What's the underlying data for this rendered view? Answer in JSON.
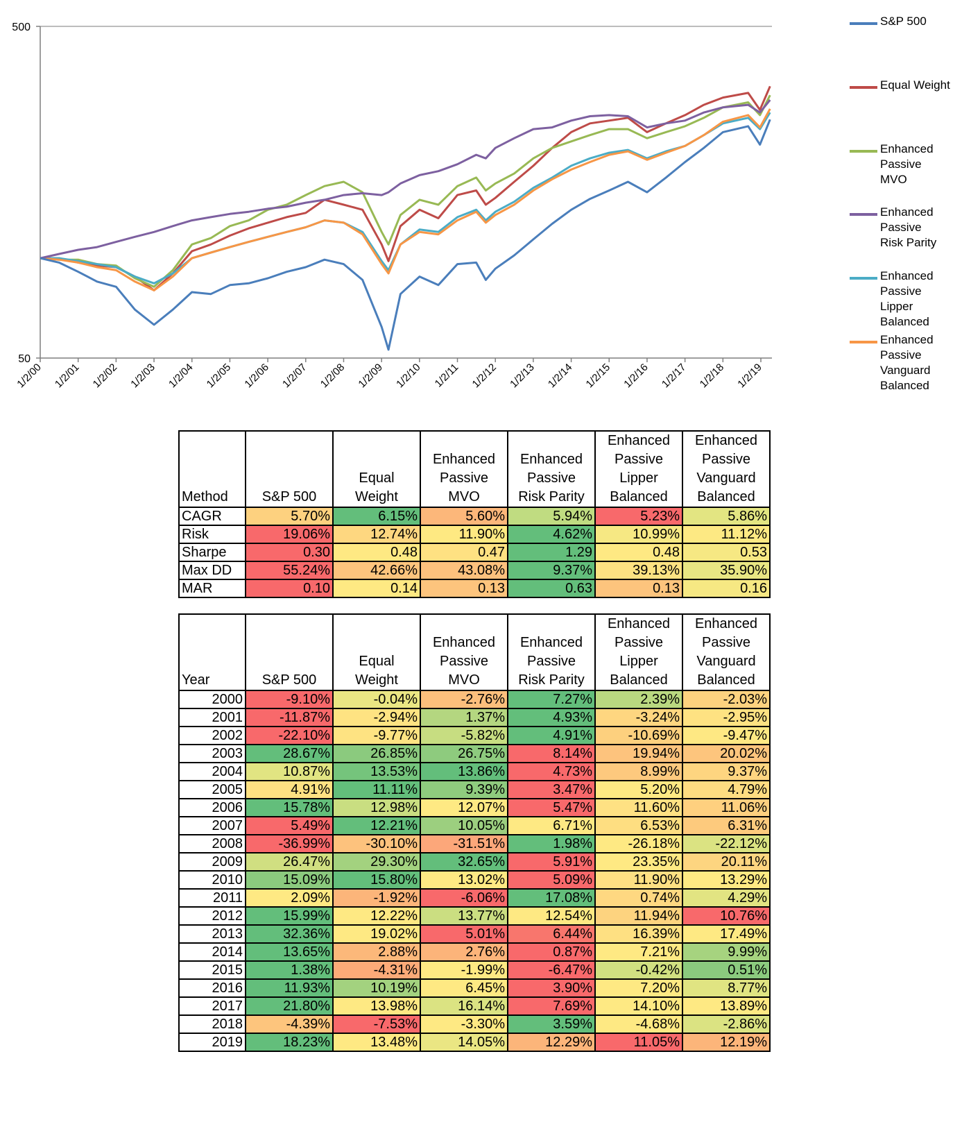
{
  "chart_data": {
    "type": "line",
    "y_scale": "log",
    "ylim": [
      50,
      500
    ],
    "y_ticks": [
      "500",
      "50"
    ],
    "x_ticks": [
      "1/2/00",
      "1/2/01",
      "1/2/02",
      "1/2/03",
      "1/2/04",
      "1/2/05",
      "1/2/06",
      "1/2/07",
      "1/2/08",
      "1/2/09",
      "1/2/10",
      "1/2/11",
      "1/2/12",
      "1/2/13",
      "1/2/14",
      "1/2/15",
      "1/2/16",
      "1/2/17",
      "1/2/18",
      "1/2/19"
    ],
    "grid": "horizontal at top only",
    "legend": "right",
    "x": [
      "2000-01-02",
      "2000-07-02",
      "2001-01-02",
      "2001-07-02",
      "2002-01-02",
      "2002-07-02",
      "2003-01-02",
      "2003-07-02",
      "2004-01-02",
      "2004-07-02",
      "2005-01-02",
      "2005-07-02",
      "2006-01-02",
      "2006-07-02",
      "2007-01-02",
      "2007-07-02",
      "2008-01-02",
      "2008-07-02",
      "2009-01-02",
      "2009-03-09",
      "2009-07-02",
      "2010-01-02",
      "2010-07-02",
      "2011-01-02",
      "2011-07-02",
      "2011-10-02",
      "2012-01-02",
      "2012-07-02",
      "2013-01-02",
      "2013-07-02",
      "2014-01-02",
      "2014-07-02",
      "2015-01-02",
      "2015-07-02",
      "2016-01-02",
      "2016-07-02",
      "2017-01-02",
      "2017-07-02",
      "2018-01-02",
      "2018-09-02",
      "2018-12-24",
      "2019-04-01"
    ],
    "series": [
      {
        "name": "S&P 500",
        "color": "#4a7ebb",
        "values": [
          100,
          97,
          91,
          85,
          82,
          70,
          63,
          70,
          79,
          78,
          83,
          84,
          87,
          91,
          94,
          99,
          96,
          86,
          62,
          53,
          78,
          88,
          83,
          96,
          97,
          86,
          93,
          102,
          114,
          127,
          140,
          151,
          160,
          170,
          158,
          175,
          195,
          215,
          240,
          250,
          220,
          262
        ]
      },
      {
        "name": "Equal Weight",
        "color": "#be4b48",
        "values": [
          100,
          100,
          97,
          95,
          94,
          88,
          80,
          90,
          105,
          110,
          117,
          123,
          128,
          133,
          137,
          150,
          145,
          140,
          110,
          98,
          125,
          140,
          132,
          155,
          160,
          145,
          152,
          170,
          190,
          215,
          240,
          255,
          260,
          265,
          240,
          255,
          270,
          290,
          305,
          315,
          280,
          330
        ]
      },
      {
        "name": "Enhanced Passive MVO",
        "color": "#98b954",
        "values": [
          100,
          99,
          99,
          96,
          95,
          87,
          82,
          92,
          110,
          115,
          125,
          130,
          140,
          145,
          155,
          165,
          170,
          158,
          120,
          110,
          135,
          150,
          145,
          165,
          175,
          160,
          168,
          180,
          200,
          215,
          225,
          235,
          245,
          245,
          230,
          240,
          250,
          265,
          285,
          295,
          270,
          310
        ]
      },
      {
        "name": "Enhanced Passive Risk Parity",
        "color": "#7d60a0",
        "values": [
          100,
          103,
          106,
          108,
          112,
          116,
          120,
          125,
          130,
          133,
          136,
          138,
          141,
          143,
          147,
          150,
          155,
          157,
          155,
          158,
          168,
          178,
          183,
          192,
          205,
          200,
          215,
          230,
          245,
          248,
          260,
          268,
          270,
          268,
          248,
          255,
          260,
          275,
          285,
          290,
          275,
          300
        ]
      },
      {
        "name": "Enhanced Passive Lipper Balanced",
        "color": "#4bacc6",
        "values": [
          100,
          100,
          98,
          96,
          94,
          88,
          84,
          90,
          100,
          104,
          108,
          112,
          116,
          120,
          124,
          130,
          128,
          120,
          98,
          92,
          110,
          122,
          120,
          133,
          140,
          130,
          138,
          148,
          163,
          175,
          190,
          200,
          208,
          212,
          200,
          210,
          218,
          235,
          255,
          265,
          245,
          275
        ]
      },
      {
        "name": "Enhanced Passive Vanguard Balanced",
        "color": "#f79646",
        "values": [
          100,
          99,
          97,
          94,
          92,
          85,
          80,
          88,
          100,
          104,
          108,
          112,
          116,
          120,
          124,
          130,
          128,
          118,
          96,
          90,
          110,
          120,
          118,
          130,
          138,
          128,
          135,
          145,
          160,
          173,
          185,
          195,
          205,
          210,
          198,
          208,
          218,
          235,
          258,
          270,
          248,
          282
        ]
      }
    ]
  },
  "legend": [
    {
      "label": "S&P 500",
      "color": "#4a7ebb"
    },
    {
      "label": "Equal Weight",
      "color": "#be4b48"
    },
    {
      "label": "Enhanced\nPassive\nMVO",
      "color": "#98b954"
    },
    {
      "label": "Enhanced\nPassive\nRisk Parity",
      "color": "#7d60a0"
    },
    {
      "label": "Enhanced\nPassive\nLipper\nBalanced",
      "color": "#4bacc6"
    },
    {
      "label": "Enhanced\nPassive\nVanguard\nBalanced",
      "color": "#f79646"
    }
  ],
  "summary_table": {
    "header": [
      "Method",
      "S&P 500",
      "Equal\nWeight",
      "Enhanced\nPassive\nMVO",
      "Enhanced\nPassive\nRisk Parity",
      "Enhanced\nPassive\nLipper\nBalanced",
      "Enhanced\nPassive\nVanguard\nBalanced"
    ],
    "rows": [
      {
        "label": "CAGR",
        "cells": [
          [
            "5.70%",
            "#fdd17f"
          ],
          [
            "6.15%",
            "#63be7b"
          ],
          [
            "5.60%",
            "#fcb77a"
          ],
          [
            "5.94%",
            "#c0dc81"
          ],
          [
            "5.23%",
            "#f8696b"
          ],
          [
            "5.86%",
            "#e3e582"
          ]
        ]
      },
      {
        "label": "Risk",
        "cells": [
          [
            "19.06%",
            "#f8696b"
          ],
          [
            "12.74%",
            "#fed780"
          ],
          [
            "11.90%",
            "#fee982"
          ],
          [
            "4.62%",
            "#63be7b"
          ],
          [
            "10.99%",
            "#f6e883"
          ],
          [
            "11.12%",
            "#fde983"
          ]
        ]
      },
      {
        "label": "Sharpe",
        "cells": [
          [
            "0.30",
            "#f8696b"
          ],
          [
            "0.48",
            "#fee983"
          ],
          [
            "0.47",
            "#fee182"
          ],
          [
            "1.29",
            "#63be7b"
          ],
          [
            "0.48",
            "#fee983"
          ],
          [
            "0.53",
            "#f6e883"
          ]
        ]
      },
      {
        "label": "Max DD",
        "cells": [
          [
            "55.24%",
            "#f8696b"
          ],
          [
            "42.66%",
            "#fdc47d"
          ],
          [
            "43.08%",
            "#fdc17d"
          ],
          [
            "9.37%",
            "#63be7b"
          ],
          [
            "39.13%",
            "#fde282"
          ],
          [
            "35.90%",
            "#e8e683"
          ]
        ]
      },
      {
        "label": "MAR",
        "cells": [
          [
            "0.10",
            "#f8696b"
          ],
          [
            "0.14",
            "#fee983"
          ],
          [
            "0.13",
            "#fdc47d"
          ],
          [
            "0.63",
            "#63be7b"
          ],
          [
            "0.13",
            "#fdc47d"
          ],
          [
            "0.16",
            "#f6e883"
          ]
        ]
      }
    ]
  },
  "yearly_table": {
    "header": [
      "Year",
      "S&P 500",
      "Equal\nWeight",
      "Enhanced\nPassive\nMVO",
      "Enhanced\nPassive\nRisk Parity",
      "Enhanced\nPassive\nLipper\nBalanced",
      "Enhanced\nPassive\nVanguard\nBalanced"
    ],
    "rows": [
      {
        "label": "2000",
        "cells": [
          [
            "-9.10%",
            "#f8696b"
          ],
          [
            "-0.04%",
            "#eae683"
          ],
          [
            "-2.76%",
            "#fcbf7c"
          ],
          [
            "7.27%",
            "#63be7b"
          ],
          [
            "2.39%",
            "#b9d880"
          ],
          [
            "-2.03%",
            "#fdd27f"
          ]
        ]
      },
      {
        "label": "2001",
        "cells": [
          [
            "-11.87%",
            "#f8696b"
          ],
          [
            "-2.94%",
            "#fee382"
          ],
          [
            "1.37%",
            "#b4d680"
          ],
          [
            "4.93%",
            "#63be7b"
          ],
          [
            "-3.24%",
            "#fed680"
          ],
          [
            "-2.95%",
            "#fee282"
          ]
        ]
      },
      {
        "label": "2002",
        "cells": [
          [
            "-22.10%",
            "#f8696b"
          ],
          [
            "-9.77%",
            "#fee382"
          ],
          [
            "-5.82%",
            "#c7dd81"
          ],
          [
            "4.91%",
            "#63be7b"
          ],
          [
            "-10.69%",
            "#fdd07e"
          ],
          [
            "-9.47%",
            "#fee883"
          ]
        ]
      },
      {
        "label": "2003",
        "cells": [
          [
            "28.67%",
            "#63be7b"
          ],
          [
            "26.85%",
            "#8bca7e"
          ],
          [
            "26.75%",
            "#8ecb7e"
          ],
          [
            "8.14%",
            "#f8696b"
          ],
          [
            "19.94%",
            "#fdc37d"
          ],
          [
            "20.02%",
            "#fdc57d"
          ]
        ]
      },
      {
        "label": "2004",
        "cells": [
          [
            "10.87%",
            "#e1e482"
          ],
          [
            "13.53%",
            "#75c47c"
          ],
          [
            "13.86%",
            "#63be7b"
          ],
          [
            "4.73%",
            "#f8696b"
          ],
          [
            "8.99%",
            "#fdc97e"
          ],
          [
            "9.37%",
            "#fed580"
          ]
        ]
      },
      {
        "label": "2005",
        "cells": [
          [
            "4.91%",
            "#fee182"
          ],
          [
            "11.11%",
            "#63be7b"
          ],
          [
            "9.39%",
            "#8fcb7e"
          ],
          [
            "3.47%",
            "#f8696b"
          ],
          [
            "5.20%",
            "#fee983"
          ],
          [
            "4.79%",
            "#fedc81"
          ]
        ]
      },
      {
        "label": "2006",
        "cells": [
          [
            "15.78%",
            "#63be7b"
          ],
          [
            "12.98%",
            "#c9de81"
          ],
          [
            "12.07%",
            "#fee983"
          ],
          [
            "5.47%",
            "#f8696b"
          ],
          [
            "11.60%",
            "#fee183"
          ],
          [
            "11.06%",
            "#fed07f"
          ]
        ]
      },
      {
        "label": "2007",
        "cells": [
          [
            "5.49%",
            "#f8696b"
          ],
          [
            "12.21%",
            "#63be7b"
          ],
          [
            "10.05%",
            "#9ccf7f"
          ],
          [
            "6.71%",
            "#fee983"
          ],
          [
            "6.53%",
            "#fede81"
          ],
          [
            "6.31%",
            "#fdca7d"
          ]
        ]
      },
      {
        "label": "2008",
        "cells": [
          [
            "-36.99%",
            "#f8696b"
          ],
          [
            "-30.10%",
            "#fdc27d"
          ],
          [
            "-31.51%",
            "#fca77a"
          ],
          [
            "1.98%",
            "#63be7b"
          ],
          [
            "-26.18%",
            "#fee983"
          ],
          [
            "-22.12%",
            "#dbe382"
          ]
        ]
      },
      {
        "label": "2009",
        "cells": [
          [
            "26.47%",
            "#d0df81"
          ],
          [
            "29.30%",
            "#a3d27f"
          ],
          [
            "32.65%",
            "#63be7b"
          ],
          [
            "5.91%",
            "#f8696b"
          ],
          [
            "23.35%",
            "#fee983"
          ],
          [
            "20.11%",
            "#fdd580"
          ]
        ]
      },
      {
        "label": "2010",
        "cells": [
          [
            "15.09%",
            "#8bca7e"
          ],
          [
            "15.80%",
            "#63be7b"
          ],
          [
            "13.02%",
            "#fee983"
          ],
          [
            "5.09%",
            "#f8696b"
          ],
          [
            "11.90%",
            "#fee083"
          ],
          [
            "13.29%",
            "#fee983"
          ]
        ]
      },
      {
        "label": "2011",
        "cells": [
          [
            "2.09%",
            "#fee983"
          ],
          [
            "-1.92%",
            "#fcb57a"
          ],
          [
            "-6.06%",
            "#f8696b"
          ],
          [
            "17.08%",
            "#63be7b"
          ],
          [
            "0.74%",
            "#fed881"
          ],
          [
            "4.29%",
            "#e2e482"
          ]
        ]
      },
      {
        "label": "2012",
        "cells": [
          [
            "15.99%",
            "#63be7b"
          ],
          [
            "12.22%",
            "#fee983"
          ],
          [
            "13.77%",
            "#cbde81"
          ],
          [
            "12.54%",
            "#fee983"
          ],
          [
            "11.94%",
            "#fdd37f"
          ],
          [
            "10.76%",
            "#f8696b"
          ]
        ]
      },
      {
        "label": "2013",
        "cells": [
          [
            "32.36%",
            "#63be7b"
          ],
          [
            "19.02%",
            "#fee983"
          ],
          [
            "5.01%",
            "#f8696b"
          ],
          [
            "6.44%",
            "#f8766d"
          ],
          [
            "16.39%",
            "#fee082"
          ],
          [
            "17.49%",
            "#fee983"
          ]
        ]
      },
      {
        "label": "2014",
        "cells": [
          [
            "13.65%",
            "#63be7b"
          ],
          [
            "2.88%",
            "#fcb87a"
          ],
          [
            "2.76%",
            "#fcb47a"
          ],
          [
            "0.87%",
            "#f8696b"
          ],
          [
            "7.21%",
            "#fee983"
          ],
          [
            "9.99%",
            "#a6d37f"
          ]
        ]
      },
      {
        "label": "2015",
        "cells": [
          [
            "1.38%",
            "#63be7b"
          ],
          [
            "-4.31%",
            "#fcaa78"
          ],
          [
            "-1.99%",
            "#fee983"
          ],
          [
            "-6.47%",
            "#f8696b"
          ],
          [
            "-0.42%",
            "#d1e081"
          ],
          [
            "0.51%",
            "#8bca7e"
          ]
        ]
      },
      {
        "label": "2016",
        "cells": [
          [
            "11.93%",
            "#63be7b"
          ],
          [
            "10.19%",
            "#a3d27f"
          ],
          [
            "6.45%",
            "#fee983"
          ],
          [
            "3.90%",
            "#f8696b"
          ],
          [
            "7.20%",
            "#fee983"
          ],
          [
            "8.77%",
            "#e0e482"
          ]
        ]
      },
      {
        "label": "2017",
        "cells": [
          [
            "21.80%",
            "#63be7b"
          ],
          [
            "13.98%",
            "#fee983"
          ],
          [
            "16.14%",
            "#dbe382"
          ],
          [
            "7.69%",
            "#f8696b"
          ],
          [
            "14.10%",
            "#fee983"
          ],
          [
            "13.89%",
            "#fee983"
          ]
        ]
      },
      {
        "label": "2018",
        "cells": [
          [
            "-4.39%",
            "#fdc57d"
          ],
          [
            "-7.53%",
            "#f8696b"
          ],
          [
            "-3.30%",
            "#fee983"
          ],
          [
            "3.59%",
            "#63be7b"
          ],
          [
            "-4.68%",
            "#fee983"
          ],
          [
            "-2.86%",
            "#dbe382"
          ]
        ]
      },
      {
        "label": "2019",
        "cells": [
          [
            "18.23%",
            "#63be7b"
          ],
          [
            "13.48%",
            "#fee983"
          ],
          [
            "14.05%",
            "#eae683"
          ],
          [
            "12.29%",
            "#fcb57a"
          ],
          [
            "11.05%",
            "#f8696b"
          ],
          [
            "12.19%",
            "#fcb57a"
          ]
        ]
      }
    ]
  }
}
